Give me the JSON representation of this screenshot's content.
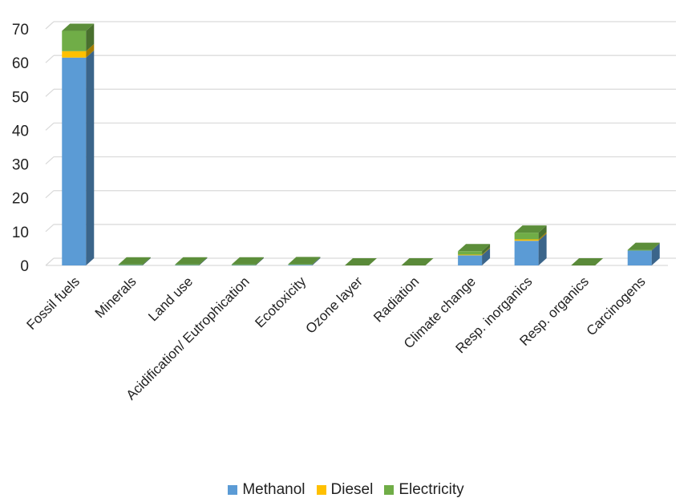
{
  "chart_data": {
    "type": "bar",
    "stacked": true,
    "three_d": true,
    "title": "",
    "xlabel": "",
    "ylabel": "",
    "ylim": [
      0,
      70
    ],
    "yticks": [
      0,
      10,
      20,
      30,
      40,
      50,
      60,
      70
    ],
    "grid": true,
    "legend_position": "bottom",
    "categories": [
      "Fossil fuels",
      "Minerals",
      "Land use",
      "Acidification/ Eutrophication",
      "Ecotoxicity",
      "Ozone layer",
      "Radiation",
      "Climate change",
      "Resp. inorganics",
      "Resp. organics",
      "Carcinogens"
    ],
    "series": [
      {
        "name": "Methanol",
        "color": "#5B9BD5",
        "values": [
          61.5,
          0.1,
          0.1,
          0.1,
          0.2,
          0.0,
          0.0,
          3.0,
          7.3,
          0.0,
          4.4
        ]
      },
      {
        "name": "Diesel",
        "color": "#FFC000",
        "values": [
          1.9,
          0.0,
          0.0,
          0.0,
          0.0,
          0.0,
          0.0,
          0.2,
          0.4,
          0.0,
          0.0
        ]
      },
      {
        "name": "Electricity",
        "color": "#70AD47",
        "values": [
          6.0,
          0.1,
          0.1,
          0.2,
          0.2,
          0.0,
          0.0,
          1.0,
          2.0,
          0.0,
          0.2
        ]
      }
    ]
  }
}
